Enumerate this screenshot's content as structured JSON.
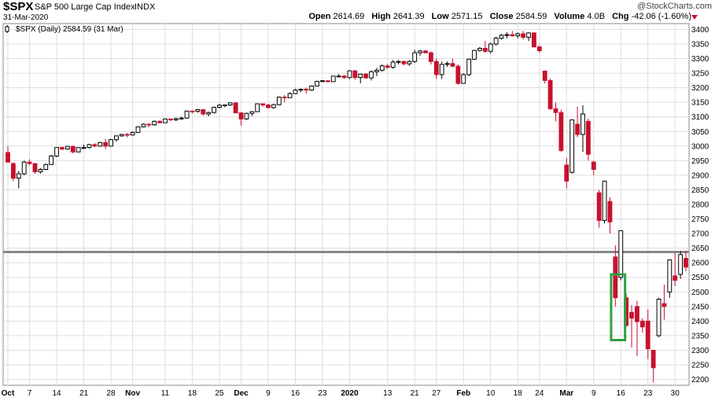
{
  "header": {
    "symbol": "$SPX",
    "name": "S&P 500 Large Cap Index",
    "exchange": "INDX",
    "date": "31-Mar-2020",
    "watermark": "@StockCharts.com",
    "open_label": "Open",
    "open": "2614.69",
    "high_label": "High",
    "high": "2641.39",
    "low_label": "Low",
    "low": "2571.15",
    "close_label": "Close",
    "close": "2584.59",
    "volume_label": "Volume",
    "volume": "4.0B",
    "chg_label": "Chg",
    "chg": "-42.06 (-1.60%)"
  },
  "colors": {
    "up": "#000000",
    "down": "#c8102e",
    "hline": "#888888",
    "box": "#2ea043",
    "grid": "#dddddd"
  },
  "chart_data": {
    "type": "candlestick",
    "legend": "$SPX (Daily) 2584.59 (31 Mar)",
    "y_ticks": [
      3400,
      3350,
      3300,
      3250,
      3200,
      3150,
      3100,
      3050,
      3000,
      2950,
      2900,
      2850,
      2800,
      2750,
      2700,
      2650,
      2600,
      2550,
      2500,
      2450,
      2400,
      2350,
      2300,
      2250,
      2200
    ],
    "ylim": [
      2180,
      3420
    ],
    "x_labels": [
      {
        "label": "Oct",
        "i": 0
      },
      {
        "label": "7",
        "i": 4
      },
      {
        "label": "14",
        "i": 9
      },
      {
        "label": "21",
        "i": 14
      },
      {
        "label": "28",
        "i": 19
      },
      {
        "label": "Nov",
        "i": 23
      },
      {
        "label": "11",
        "i": 29
      },
      {
        "label": "18",
        "i": 34
      },
      {
        "label": "25",
        "i": 39
      },
      {
        "label": "Dec",
        "i": 43
      },
      {
        "label": "9",
        "i": 48
      },
      {
        "label": "16",
        "i": 53
      },
      {
        "label": "23",
        "i": 58
      },
      {
        "label": "2020",
        "i": 63
      },
      {
        "label": "13",
        "i": 70
      },
      {
        "label": "21",
        "i": 75
      },
      {
        "label": "27",
        "i": 79
      },
      {
        "label": "Feb",
        "i": 84
      },
      {
        "label": "10",
        "i": 89
      },
      {
        "label": "18",
        "i": 94
      },
      {
        "label": "24",
        "i": 98
      },
      {
        "label": "Mar",
        "i": 103
      },
      {
        "label": "9",
        "i": 108
      },
      {
        "label": "16",
        "i": 113
      },
      {
        "label": "23",
        "i": 118
      },
      {
        "label": "30",
        "i": 123
      }
    ],
    "hline": 2637,
    "highlight_box": {
      "i_start": 112,
      "i_end": 113,
      "top": 2560,
      "bottom": 2335
    },
    "ohlc": [
      [
        2978,
        3000,
        2945,
        2945
      ],
      [
        2940,
        2945,
        2880,
        2890
      ],
      [
        2890,
        2915,
        2855,
        2905
      ],
      [
        2905,
        2950,
        2900,
        2945
      ],
      [
        2945,
        2955,
        2935,
        2940
      ],
      [
        2940,
        2940,
        2905,
        2912
      ],
      [
        2912,
        2925,
        2905,
        2920
      ],
      [
        2920,
        2940,
        2918,
        2937
      ],
      [
        2937,
        2970,
        2935,
        2966
      ],
      [
        2966,
        2996,
        2962,
        2995
      ],
      [
        2995,
        2999,
        2985,
        2990
      ],
      [
        2990,
        3000,
        2988,
        2999
      ],
      [
        2999,
        3002,
        2975,
        2980
      ],
      [
        2980,
        2996,
        2978,
        2995
      ],
      [
        2995,
        3005,
        2990,
        2995
      ],
      [
        2995,
        3008,
        2992,
        3005
      ],
      [
        3005,
        3010,
        2997,
        3000
      ],
      [
        3000,
        3015,
        2998,
        3012
      ],
      [
        3012,
        3025,
        2990,
        3000
      ],
      [
        3000,
        3025,
        2998,
        3022
      ],
      [
        3022,
        3036,
        3015,
        3035
      ],
      [
        3035,
        3042,
        3032,
        3040
      ],
      [
        3040,
        3045,
        3030,
        3038
      ],
      [
        3038,
        3050,
        3036,
        3047
      ],
      [
        3047,
        3068,
        3045,
        3066
      ],
      [
        3066,
        3078,
        3064,
        3075
      ],
      [
        3075,
        3079,
        3065,
        3073
      ],
      [
        3073,
        3088,
        3070,
        3085
      ],
      [
        3085,
        3088,
        3078,
        3080
      ],
      [
        3080,
        3095,
        3079,
        3093
      ],
      [
        3093,
        3094,
        3085,
        3090
      ],
      [
        3090,
        3098,
        3086,
        3094
      ],
      [
        3094,
        3101,
        3090,
        3096
      ],
      [
        3096,
        3122,
        3094,
        3120
      ],
      [
        3120,
        3122,
        3112,
        3119
      ],
      [
        3119,
        3127,
        3114,
        3125
      ],
      [
        3125,
        3127,
        3105,
        3110
      ],
      [
        3110,
        3118,
        3102,
        3115
      ],
      [
        3115,
        3135,
        3112,
        3133
      ],
      [
        3133,
        3145,
        3130,
        3140
      ],
      [
        3140,
        3143,
        3133,
        3141
      ],
      [
        3141,
        3150,
        3138,
        3148
      ],
      [
        3148,
        3151,
        3115,
        3114
      ],
      [
        3114,
        3115,
        3070,
        3093
      ],
      [
        3093,
        3115,
        3090,
        3112
      ],
      [
        3112,
        3120,
        3103,
        3118
      ],
      [
        3118,
        3145,
        3117,
        3145
      ],
      [
        3145,
        3146,
        3135,
        3141
      ],
      [
        3141,
        3145,
        3128,
        3132
      ],
      [
        3132,
        3145,
        3128,
        3142
      ],
      [
        3142,
        3170,
        3140,
        3168
      ],
      [
        3168,
        3175,
        3150,
        3166
      ],
      [
        3166,
        3185,
        3165,
        3180
      ],
      [
        3180,
        3197,
        3178,
        3192
      ],
      [
        3192,
        3197,
        3185,
        3195
      ],
      [
        3195,
        3200,
        3180,
        3192
      ],
      [
        3192,
        3208,
        3190,
        3206
      ],
      [
        3206,
        3224,
        3204,
        3222
      ],
      [
        3222,
        3226,
        3220,
        3224
      ],
      [
        3224,
        3226,
        3218,
        3221
      ],
      [
        3221,
        3240,
        3220,
        3240
      ],
      [
        3240,
        3247,
        3236,
        3240
      ],
      [
        3240,
        3244,
        3230,
        3235
      ],
      [
        3235,
        3260,
        3230,
        3258
      ],
      [
        3258,
        3260,
        3228,
        3235
      ],
      [
        3235,
        3248,
        3215,
        3247
      ],
      [
        3247,
        3250,
        3230,
        3234
      ],
      [
        3234,
        3260,
        3225,
        3255
      ],
      [
        3255,
        3268,
        3240,
        3260
      ],
      [
        3260,
        3280,
        3255,
        3275
      ],
      [
        3275,
        3282,
        3265,
        3270
      ],
      [
        3270,
        3295,
        3265,
        3288
      ],
      [
        3288,
        3295,
        3280,
        3290
      ],
      [
        3290,
        3294,
        3277,
        3282
      ],
      [
        3282,
        3295,
        3275,
        3290
      ],
      [
        3290,
        3330,
        3285,
        3320
      ],
      [
        3320,
        3330,
        3310,
        3326
      ],
      [
        3326,
        3330,
        3318,
        3320
      ],
      [
        3320,
        3325,
        3280,
        3290
      ],
      [
        3290,
        3300,
        3230,
        3245
      ],
      [
        3245,
        3290,
        3230,
        3280
      ],
      [
        3280,
        3290,
        3272,
        3283
      ],
      [
        3283,
        3300,
        3270,
        3274
      ],
      [
        3274,
        3280,
        3210,
        3215
      ],
      [
        3215,
        3250,
        3215,
        3245
      ],
      [
        3245,
        3300,
        3240,
        3298
      ],
      [
        3298,
        3330,
        3295,
        3328
      ],
      [
        3328,
        3340,
        3324,
        3335
      ],
      [
        3335,
        3360,
        3320,
        3325
      ],
      [
        3325,
        3355,
        3317,
        3350
      ],
      [
        3350,
        3375,
        3345,
        3370
      ],
      [
        3370,
        3385,
        3365,
        3380
      ],
      [
        3380,
        3390,
        3370,
        3382
      ],
      [
        3382,
        3395,
        3375,
        3378
      ],
      [
        3378,
        3390,
        3370,
        3385
      ],
      [
        3385,
        3395,
        3365,
        3373
      ],
      [
        3373,
        3390,
        3360,
        3388
      ],
      [
        3388,
        3390,
        3345,
        3340
      ],
      [
        3340,
        3345,
        3320,
        3327
      ],
      [
        3257,
        3260,
        3215,
        3225
      ],
      [
        3225,
        3232,
        3125,
        3128
      ],
      [
        3128,
        3150,
        3085,
        3115
      ],
      [
        3115,
        3125,
        2980,
        2985
      ],
      [
        2935,
        2960,
        2855,
        2880
      ],
      [
        2910,
        3090,
        2905,
        3090
      ],
      [
        3075,
        3135,
        3030,
        3040
      ],
      [
        3040,
        3140,
        2980,
        3110
      ],
      [
        3085,
        3095,
        2950,
        2972
      ],
      [
        2945,
        2950,
        2900,
        2920
      ],
      [
        2840,
        2850,
        2720,
        2745
      ],
      [
        2745,
        2880,
        2735,
        2880
      ],
      [
        2810,
        2825,
        2700,
        2740
      ],
      [
        2620,
        2660,
        2450,
        2480
      ],
      [
        2550,
        2710,
        2540,
        2710
      ],
      [
        2480,
        2495,
        2380,
        2385
      ],
      [
        2430,
        2455,
        2310,
        2410
      ],
      [
        2450,
        2470,
        2280,
        2398
      ],
      [
        2400,
        2410,
        2360,
        2380
      ],
      [
        2400,
        2440,
        2270,
        2305
      ],
      [
        2300,
        2300,
        2190,
        2240
      ],
      [
        2350,
        2480,
        2345,
        2475
      ],
      [
        2460,
        2525,
        2405,
        2450
      ],
      [
        2500,
        2610,
        2480,
        2610
      ],
      [
        2555,
        2635,
        2520,
        2540
      ],
      [
        2560,
        2640,
        2545,
        2628
      ],
      [
        2615,
        2641,
        2571,
        2585
      ]
    ]
  }
}
